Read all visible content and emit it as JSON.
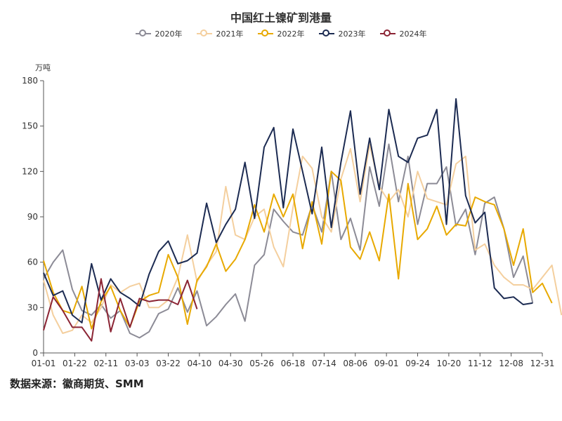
{
  "chart_data": {
    "type": "line",
    "title": "中国红土镍矿到港量",
    "ylabel": "万吨",
    "ylim": [
      0,
      180
    ],
    "yticks": [
      0,
      30,
      60,
      90,
      120,
      150,
      180
    ],
    "x_tick_labels": [
      "01-01",
      "01-22",
      "02-11",
      "03-03",
      "03-22",
      "04-10",
      "04-30",
      "05-26",
      "06-18",
      "07-14",
      "08-06",
      "09-01",
      "09-24",
      "10-20",
      "11-12",
      "12-08",
      "12-31"
    ],
    "grid": false,
    "legend": "top-center",
    "series": [
      {
        "name": "2020年",
        "color": "#8c8b96",
        "values": [
          49,
          60,
          68,
          42,
          28,
          25,
          32,
          23,
          28,
          13,
          10,
          14,
          26,
          29,
          43,
          27,
          41,
          18,
          24,
          32,
          39,
          21,
          58,
          65,
          95,
          87,
          80,
          78,
          98,
          80,
          120,
          75,
          89,
          68,
          123,
          97,
          138,
          100,
          130,
          85,
          112,
          112,
          123,
          84,
          95,
          65,
          99,
          103,
          82,
          50,
          64,
          33
        ]
      },
      {
        "name": "2021年",
        "color": "#f4cf9e",
        "values": [
          48,
          25,
          13,
          15,
          25,
          20,
          30,
          45,
          40,
          44,
          46,
          30,
          30,
          35,
          50,
          78,
          47,
          58,
          67,
          110,
          78,
          75,
          90,
          95,
          70,
          57,
          96,
          130,
          122,
          90,
          80,
          115,
          135,
          100,
          138,
          110,
          100,
          108,
          90,
          120,
          102,
          100,
          98,
          125,
          130,
          68,
          72,
          58,
          50,
          45,
          45,
          42,
          50,
          58,
          25
        ]
      },
      {
        "name": "2022年",
        "color": "#e8a900",
        "values": [
          61,
          40,
          28,
          26,
          44,
          16,
          34,
          44,
          28,
          17,
          34,
          38,
          40,
          65,
          50,
          19,
          48,
          57,
          72,
          54,
          62,
          75,
          98,
          80,
          105,
          90,
          105,
          69,
          100,
          72,
          120,
          114,
          70,
          62,
          80,
          61,
          105,
          49,
          112,
          75,
          82,
          97,
          78,
          85,
          84,
          103,
          100,
          98,
          82,
          58,
          82,
          40,
          46,
          33
        ]
      },
      {
        "name": "2023年",
        "color": "#1c2b52",
        "values": [
          53,
          38,
          41,
          25,
          20,
          59,
          35,
          49,
          40,
          36,
          31,
          52,
          67,
          74,
          59,
          61,
          66,
          99,
          73,
          85,
          95,
          126,
          89,
          136,
          149,
          96,
          148,
          120,
          92,
          136,
          83,
          126,
          160,
          105,
          142,
          108,
          161,
          130,
          126,
          142,
          144,
          161,
          85,
          168,
          104,
          86,
          93,
          43,
          36,
          37,
          32,
          33
        ]
      },
      {
        "name": "2024年",
        "color": "#8b2434",
        "values": [
          15,
          37,
          28,
          17,
          17,
          8,
          49,
          14,
          36,
          17,
          36,
          34,
          35,
          35,
          32,
          48,
          29
        ]
      }
    ]
  },
  "source_note": "数据来源：徽商期货、SMM"
}
